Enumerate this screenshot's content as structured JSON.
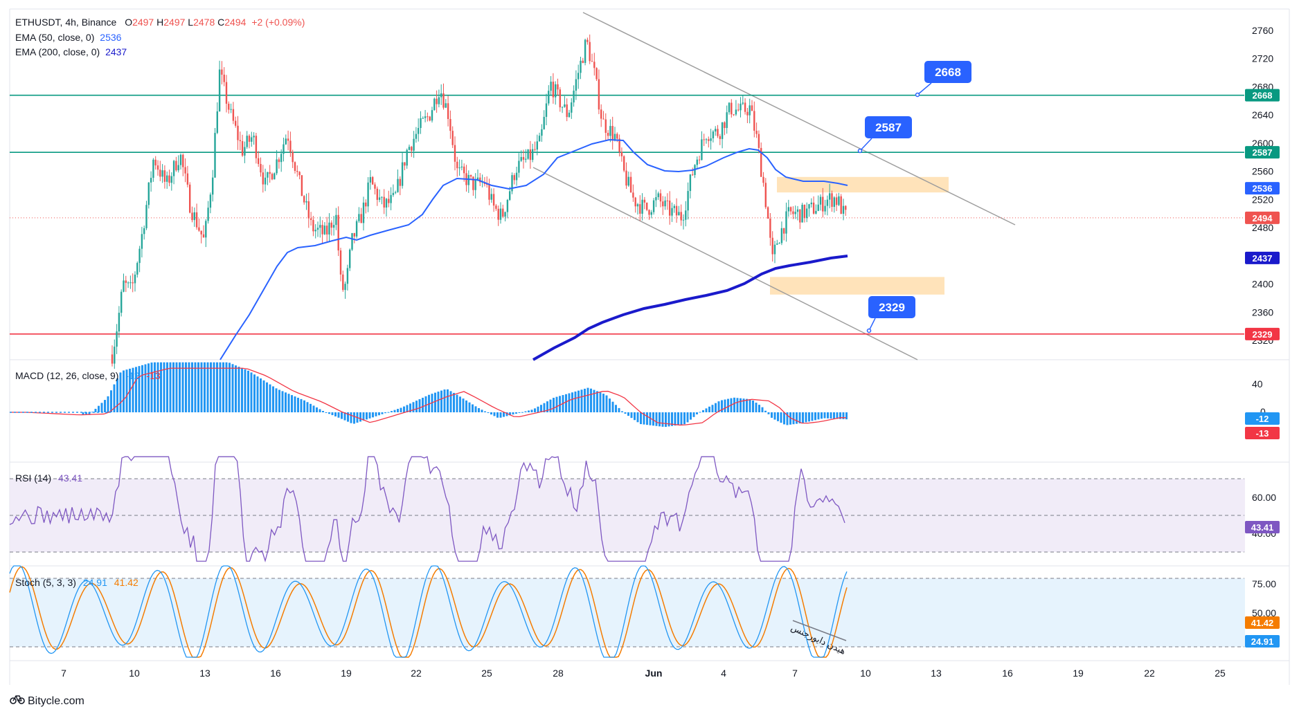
{
  "colors": {
    "up": "#26a69a",
    "down": "#ef5350",
    "ema50": "#2962ff",
    "ema200": "#1a1acb",
    "green_line": "#089981",
    "red_line": "#f23645",
    "callout": "#2962ff",
    "zone": "#ffe0b2",
    "macd_hist": "#2196f3",
    "rsi": "#7e57c2",
    "stoch_k": "#2196f3",
    "stoch_d": "#f57c00",
    "channel": "#9e9e9e"
  },
  "header": {
    "symbol": "ETHUSDT, 4h, Binance",
    "o_label": "O",
    "o": "2497",
    "h_label": "H",
    "h": "2497",
    "l_label": "L",
    "l": "2478",
    "c_label": "C",
    "c": "2494",
    "change": "+2 (+0.09%)",
    "ema50_label": "EMA (50, close, 0)",
    "ema50_value": "2536",
    "ema200_label": "EMA (200, close, 0)",
    "ema200_value": "2437"
  },
  "chart_data": {
    "type": "candlestick",
    "panels": [
      {
        "name": "price",
        "ylim": [
          2300,
          2780
        ],
        "ticks": [
          2320,
          2360,
          2400,
          2480,
          2520,
          2560,
          2600,
          2640,
          2680,
          2720,
          2760
        ],
        "last_price": 2494,
        "ema50_value": 2536,
        "ema200_value": 2437,
        "horizontal_levels": [
          {
            "value": 2668,
            "tag": "2668",
            "color": "green"
          },
          {
            "value": 2587,
            "tag": "2587",
            "color": "green"
          },
          {
            "value": 2329,
            "tag": "2329",
            "color": "red"
          }
        ],
        "callouts": [
          "2668",
          "2587",
          "2329"
        ],
        "zones": [
          {
            "from": 2530,
            "to": 2552
          },
          {
            "from": 2385,
            "to": 2410
          }
        ]
      },
      {
        "name": "MACD (12, 26, close, 9)",
        "values": [
          "-12",
          "-13"
        ],
        "ticks": [
          "40",
          "0"
        ],
        "value_tags": [
          "-12",
          "-13"
        ]
      },
      {
        "name": "RSI (14)",
        "value": "43.41",
        "ticks": [
          "60.00",
          "40.00"
        ],
        "value_tag": "43.41",
        "bands": [
          70,
          30
        ]
      },
      {
        "name": "Stoch (5, 3, 3)",
        "values": [
          "24.91",
          "41.42"
        ],
        "ticks": [
          "75.00",
          "50.00"
        ],
        "value_tags": [
          "41.42",
          "24.91"
        ]
      }
    ],
    "x_tick_labels": [
      "7",
      "10",
      "13",
      "16",
      "19",
      "22",
      "25",
      "28",
      "Jun",
      "4",
      "7",
      "10",
      "13",
      "16",
      "19",
      "22",
      "25"
    ],
    "annotation": "هیدن دایورجنس"
  },
  "footer": {
    "brand": "Bitycle.com"
  }
}
